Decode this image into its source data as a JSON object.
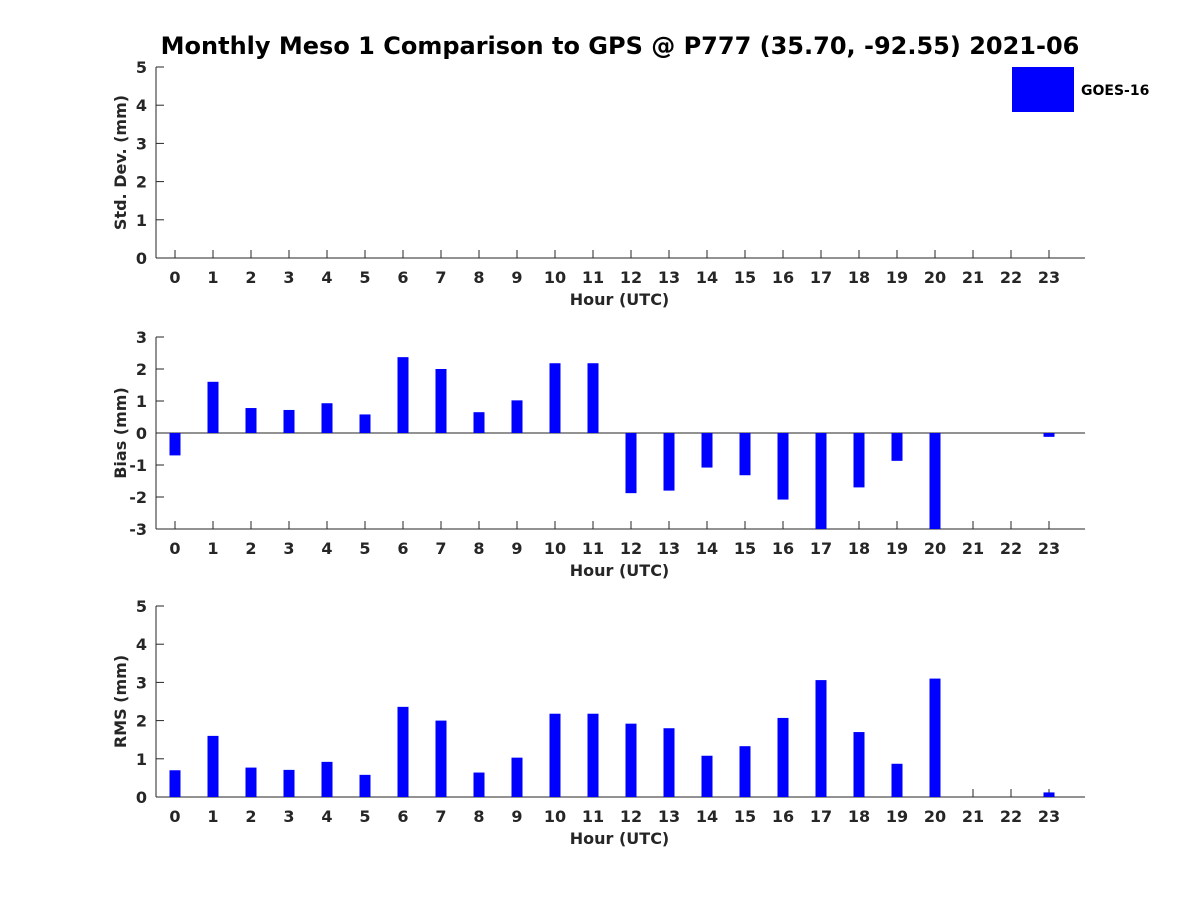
{
  "title": "Monthly Meso 1 Comparison to GPS @ P777 (35.70, -92.55) 2021-06",
  "legend": {
    "label": "GOES-16",
    "color": "#0000ff"
  },
  "bar_color": "#0000ff",
  "chart_data": [
    {
      "type": "bar",
      "name": "stddev",
      "xlabel": "Hour (UTC)",
      "ylabel": "Std. Dev. (mm)",
      "categories": [
        "0",
        "1",
        "2",
        "3",
        "4",
        "5",
        "6",
        "7",
        "8",
        "9",
        "10",
        "11",
        "12",
        "13",
        "14",
        "15",
        "16",
        "17",
        "18",
        "19",
        "20",
        "21",
        "22",
        "23"
      ],
      "values": [
        0,
        0,
        0,
        0,
        0,
        0,
        0,
        0,
        0,
        0,
        0,
        0,
        0,
        0,
        0,
        0,
        0,
        0,
        0,
        0,
        0,
        0,
        0,
        0
      ],
      "ylim": [
        0,
        5
      ],
      "yticks": [
        0,
        1,
        2,
        3,
        4,
        5
      ],
      "zero_line": false
    },
    {
      "type": "bar",
      "name": "bias",
      "xlabel": "Hour (UTC)",
      "ylabel": "Bias (mm)",
      "categories": [
        "0",
        "1",
        "2",
        "3",
        "4",
        "5",
        "6",
        "7",
        "8",
        "9",
        "10",
        "11",
        "12",
        "13",
        "14",
        "15",
        "16",
        "17",
        "18",
        "19",
        "20",
        "21",
        "22",
        "23"
      ],
      "values": [
        -0.7,
        1.6,
        0.78,
        0.72,
        0.93,
        0.58,
        2.37,
        2.0,
        0.65,
        1.02,
        2.18,
        2.18,
        -1.88,
        -1.8,
        -1.08,
        -1.32,
        -2.08,
        -3.0,
        -1.7,
        -0.87,
        -3.0,
        0,
        0,
        -0.12
      ],
      "ylim": [
        -3,
        3
      ],
      "yticks": [
        -3,
        -2,
        -1,
        0,
        1,
        2,
        3
      ],
      "zero_line": true
    },
    {
      "type": "bar",
      "name": "rms",
      "xlabel": "Hour (UTC)",
      "ylabel": "RMS (mm)",
      "categories": [
        "0",
        "1",
        "2",
        "3",
        "4",
        "5",
        "6",
        "7",
        "8",
        "9",
        "10",
        "11",
        "12",
        "13",
        "14",
        "15",
        "16",
        "17",
        "18",
        "19",
        "20",
        "21",
        "22",
        "23"
      ],
      "values": [
        0.7,
        1.6,
        0.77,
        0.71,
        0.92,
        0.58,
        2.36,
        2.0,
        0.64,
        1.03,
        2.18,
        2.18,
        1.92,
        1.8,
        1.08,
        1.33,
        2.07,
        3.06,
        1.7,
        0.87,
        3.1,
        0,
        0,
        0.12
      ],
      "ylim": [
        0,
        5
      ],
      "yticks": [
        0,
        1,
        2,
        3,
        4,
        5
      ],
      "zero_line": false
    }
  ]
}
